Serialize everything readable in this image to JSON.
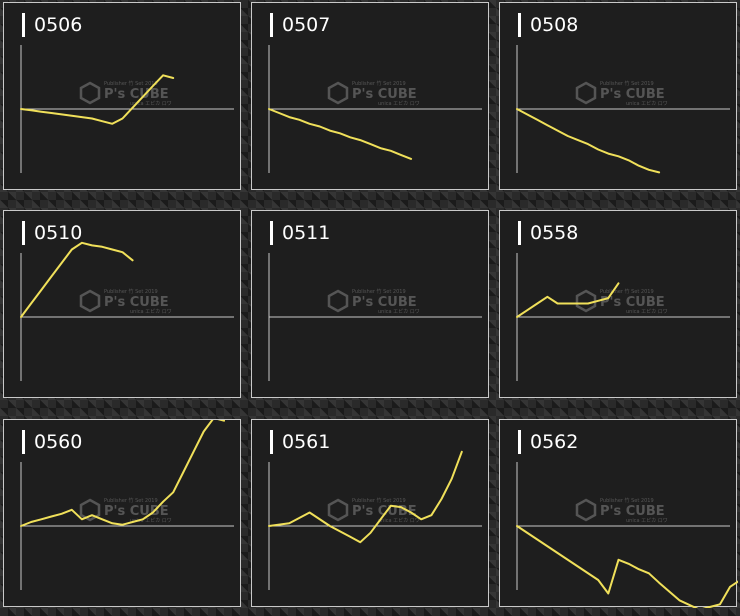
{
  "watermark": {
    "small_text": "Publisher 竹 Set 2019",
    "brand": "P's CUBE",
    "sub_text": "unica エピカ ロワ"
  },
  "colors": {
    "line": "#f0e05a",
    "axis": "#c8c8c8",
    "panel_bg": "#1e1e1e",
    "border": "#c9c9c9"
  },
  "chart_data": [
    {
      "type": "line",
      "title": "0506",
      "x": [
        0,
        5,
        10,
        15,
        20,
        25,
        30,
        35,
        40,
        45,
        50,
        55,
        60,
        65,
        70,
        75
      ],
      "values": [
        0,
        -1,
        -2,
        -3,
        -4,
        -5,
        -6,
        -7,
        -9,
        -11,
        -7,
        1,
        9,
        17,
        25,
        23
      ]
    },
    {
      "type": "line",
      "title": "0507",
      "x": [
        0,
        5,
        10,
        15,
        20,
        25,
        30,
        35,
        40,
        45,
        50,
        55,
        60,
        65,
        70
      ],
      "values": [
        0,
        -3,
        -6,
        -8,
        -11,
        -13,
        -16,
        -18,
        -21,
        -23,
        -26,
        -29,
        -31,
        -34,
        -37
      ]
    },
    {
      "type": "line",
      "title": "0508",
      "x": [
        0,
        5,
        10,
        15,
        20,
        25,
        30,
        35,
        40,
        45,
        50,
        55,
        60,
        65,
        70
      ],
      "values": [
        0,
        -4,
        -8,
        -12,
        -16,
        -20,
        -23,
        -26,
        -30,
        -33,
        -35,
        -38,
        -42,
        -45,
        -47
      ]
    },
    {
      "type": "line",
      "title": "0510",
      "x": [
        0,
        5,
        10,
        15,
        20,
        25,
        30,
        35,
        40,
        45,
        50,
        55
      ],
      "values": [
        0,
        10,
        20,
        30,
        40,
        50,
        55,
        53,
        52,
        50,
        48,
        42
      ]
    },
    {
      "type": "line",
      "title": "0511",
      "x": [],
      "values": []
    },
    {
      "type": "line",
      "title": "0558",
      "x": [
        0,
        5,
        10,
        15,
        20,
        25,
        30,
        35,
        40,
        45,
        50
      ],
      "values": [
        0,
        5,
        10,
        15,
        10,
        10,
        10,
        10,
        12,
        14,
        25
      ]
    },
    {
      "type": "line",
      "title": "0560",
      "x": [
        0,
        5,
        10,
        15,
        20,
        25,
        30,
        35,
        40,
        45,
        50,
        55,
        60,
        65,
        70,
        75,
        80,
        85,
        90,
        95,
        100
      ],
      "values": [
        0,
        3,
        5,
        7,
        9,
        12,
        5,
        8,
        5,
        2,
        1,
        3,
        5,
        10,
        18,
        25,
        40,
        55,
        70,
        80,
        78
      ]
    },
    {
      "type": "line",
      "title": "0561",
      "x": [
        0,
        10,
        20,
        30,
        40,
        45,
        50,
        55,
        60,
        65,
        70,
        75,
        80,
        85,
        90,
        95
      ],
      "values": [
        0,
        2,
        10,
        0,
        -8,
        -12,
        -5,
        5,
        15,
        14,
        10,
        5,
        8,
        20,
        35,
        55
      ]
    },
    {
      "type": "line",
      "title": "0562",
      "x": [
        0,
        10,
        20,
        30,
        40,
        45,
        50,
        55,
        60,
        65,
        70,
        80,
        90,
        95,
        100,
        105,
        110
      ],
      "values": [
        0,
        -10,
        -20,
        -30,
        -40,
        -50,
        -25,
        -28,
        -32,
        -35,
        -42,
        -55,
        -62,
        -60,
        -58,
        -45,
        -40
      ]
    }
  ]
}
